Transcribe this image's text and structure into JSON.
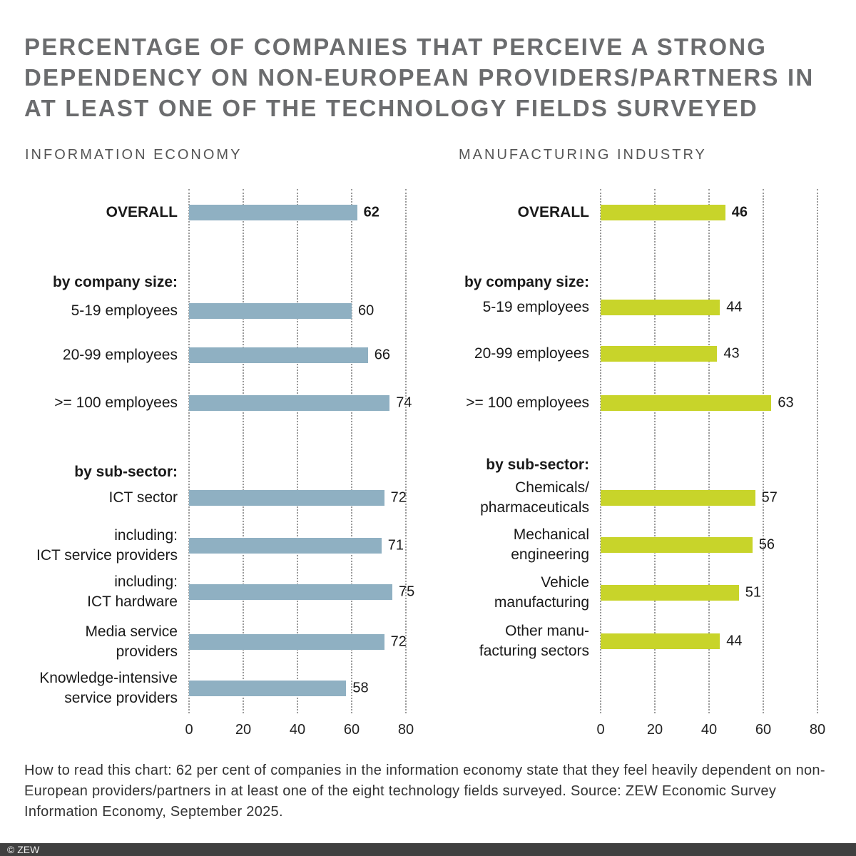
{
  "title": "Percentage of companies that perceive a strong dependency on non-European providers/partners in at least one of the technology fields surveyed",
  "chart_data": [
    {
      "type": "bar",
      "orientation": "horizontal",
      "title": "Information economy",
      "color": "#8fb0c2",
      "xlim": [
        0,
        80
      ],
      "xticks": [
        "0",
        "20",
        "40",
        "60",
        "80"
      ],
      "grid": true,
      "group_labels": {
        "size": "by company size:",
        "sector": "by sub-sector:"
      },
      "categories": [
        "OVERALL",
        "5-19 employees",
        "20-99 employees",
        ">= 100 employees",
        "ICT sector",
        "including:\nICT service providers",
        "including:\nICT hardware",
        "Media service\nproviders",
        "Knowledge-intensive\nservice providers"
      ],
      "values": [
        62,
        60,
        66,
        74,
        72,
        71,
        75,
        72,
        58
      ]
    },
    {
      "type": "bar",
      "orientation": "horizontal",
      "title": "Manufacturing industry",
      "color": "#c8d42a",
      "xlim": [
        0,
        80
      ],
      "xticks": [
        "0",
        "20",
        "40",
        "60",
        "80"
      ],
      "grid": true,
      "group_labels": {
        "size": "by company size:",
        "sector": "by sub-sector:"
      },
      "categories": [
        "OVERALL",
        "5-19 employees",
        "20-99 employees",
        ">= 100 employees",
        "Chemicals/\npharmaceuticals",
        "Mechanical\nengineering",
        "Vehicle\nmanufacturing",
        "Other manu-\nfacturing sectors"
      ],
      "values": [
        46,
        44,
        43,
        63,
        57,
        56,
        51,
        44
      ]
    }
  ],
  "note": "How to read this chart: 62 per cent of companies in the information economy state that they feel heavily dependent on non-European providers/partners in at least one of the eight technology fields surveyed. Source: ZEW Economic Survey Information Economy, September 2025.",
  "footer": "© ZEW"
}
